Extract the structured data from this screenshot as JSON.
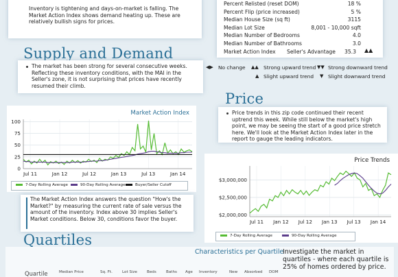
{
  "intro": {
    "text": "Inventory is tightening and days-on-market is falling. The Market Action Index shows demand heating up. These are relatively bullish signs for prices."
  },
  "stats": {
    "rows": [
      {
        "label": "Percent Relisted (reset DOM)",
        "value": "18 %"
      },
      {
        "label": "Percent Flip (price increased)",
        "value": "5 %"
      },
      {
        "label": "Median House Size (sq ft)",
        "value": "3115"
      },
      {
        "label": "Median Lot Size",
        "value": "8,001 - 10,000 sqft"
      },
      {
        "label": "Median Number of Bedrooms",
        "value": "4.0"
      },
      {
        "label": "Median Number of Bathrooms",
        "value": "3.0"
      }
    ],
    "mai_label": "Market Action Index",
    "mai_status": "Seller's Advantage",
    "mai_value": "35.3"
  },
  "trend_legend": {
    "no_change": "No change",
    "strong_up": "Strong upward trend",
    "strong_down": "Strong downward trend",
    "slight_up": "Slight upward trend",
    "slight_down": "Slight downward trend"
  },
  "supply": {
    "heading": "Supply and Demand",
    "text": "The market has been strong for several consecutive weeks. Reflecting these inventory conditions, with the MAI in the Seller's zone, it is not surprising that prices have recently resumed their climb."
  },
  "price": {
    "heading": "Price",
    "text": "Price trends in this zip code continued their recent uptrend this week. While still below the market's high point, we may be seeing the start of a good price stretch here. We'll look at the Market Action Index later in the report to gauge the leading indicators."
  },
  "mai_note": {
    "text": "The Market Action Index answers the question \"How's the Market?\" by measuring the current rate of sale versus the amount of the inventory.  Index above 30 implies Seller's Market conditions. Below 30, conditions favor the buyer."
  },
  "quartiles": {
    "heading": "Quartiles",
    "characteristics_title": "Characteristics per Quartile",
    "text": "Investigate the market in quartiles - where each quartile is 25% of homes ordered by price.",
    "columns": [
      "Quartile",
      "Median Price",
      "Sq. Ft.",
      "Lot Size",
      "Beds",
      "Baths",
      "Age",
      "Inventory",
      "New",
      "Absorbed",
      "DOM"
    ]
  },
  "chart_data": [
    {
      "type": "line",
      "title": "Market Action Index",
      "x_tick_labels": [
        "Jul 11",
        "Jan 12",
        "Jul 12",
        "Jan 13",
        "Jul 13",
        "Jan 14"
      ],
      "y_tick_labels": [
        "0",
        "25",
        "50",
        "75",
        "100"
      ],
      "ylim": [
        0,
        105
      ],
      "grid": true,
      "legend_position": "bottom",
      "series": [
        {
          "name": "7-Day Rolling Average",
          "color": "#55bb33",
          "values": [
            20,
            14,
            18,
            10,
            16,
            12,
            20,
            13,
            18,
            8,
            15,
            12,
            16,
            11,
            14,
            9,
            16,
            12,
            18,
            13,
            17,
            12,
            16,
            14,
            20,
            15,
            18,
            13,
            22,
            16,
            20,
            18,
            25,
            22,
            28,
            24,
            32,
            28,
            36,
            30,
            45,
            38,
            95,
            42,
            48,
            35,
            102,
            40,
            75,
            32,
            38,
            30,
            55,
            33,
            40,
            32,
            36,
            30,
            42,
            35,
            38,
            40,
            36
          ]
        },
        {
          "name": "90-Day Rolling Average",
          "color": "#5a3c8a",
          "values": [
            16,
            15,
            15,
            14,
            14,
            14,
            14,
            14,
            14,
            13,
            13,
            13,
            13,
            13,
            13,
            13,
            13,
            13,
            14,
            14,
            14,
            14,
            14,
            15,
            15,
            16,
            16,
            16,
            17,
            17,
            18,
            19,
            20,
            21,
            22,
            23,
            24,
            25,
            26,
            27,
            28,
            29,
            31,
            32,
            33,
            34,
            36,
            37,
            37,
            36,
            35,
            34,
            34,
            33,
            33,
            33,
            33,
            33,
            34,
            34,
            35,
            35,
            35
          ]
        },
        {
          "name": "Buyer/Seller Cutoff",
          "color": "#111111",
          "values": [
            30,
            30
          ]
        }
      ]
    },
    {
      "type": "line",
      "title": "Price Trends",
      "x_tick_labels": [
        "Jul 11",
        "Jan 12",
        "Jul 12",
        "Jan 13",
        "Jul 13",
        "Jan 14"
      ],
      "y_tick_labels": [
        "$2,000,000",
        "$2,500,000",
        "$3,000,000"
      ],
      "ylim": [
        1950000,
        3400000
      ],
      "grid": true,
      "legend_position": "bottom",
      "series": [
        {
          "name": "7-Day Rolling Average",
          "color": "#55bb33",
          "values": [
            2050000,
            2120000,
            2180000,
            2100000,
            2250000,
            2300000,
            2200000,
            2450000,
            2400000,
            2550000,
            2500000,
            2650000,
            2550000,
            2700000,
            2600000,
            2720000,
            2650000,
            2600000,
            2700000,
            2580000,
            2680000,
            2560000,
            2650000,
            2720000,
            2680000,
            2850000,
            2800000,
            2950000,
            2880000,
            3050000,
            2980000,
            3100000,
            3200000,
            3150000,
            3250000,
            3180000,
            3100000,
            3200000,
            3050000,
            3000000,
            2800000,
            2900000,
            2700000,
            2750000,
            2550000,
            2600000,
            2500000,
            2700000,
            2850000,
            3200000,
            3150000
          ]
        },
        {
          "name": "90-Day Rolling Average",
          "color": "#5a3c8a",
          "values": [
            null,
            null,
            null,
            null,
            null,
            null,
            null,
            null,
            null,
            null,
            null,
            null,
            null,
            null,
            null,
            null,
            null,
            null,
            null,
            null,
            null,
            null,
            null,
            null,
            null,
            null,
            null,
            null,
            null,
            null,
            2850000,
            2900000,
            2980000,
            3050000,
            3100000,
            3150000,
            3180000,
            3200000,
            3180000,
            3120000,
            3050000,
            2950000,
            2850000,
            2760000,
            2680000,
            2620000,
            2600000,
            2620000,
            2700000,
            2800000,
            2880000
          ]
        }
      ]
    }
  ]
}
